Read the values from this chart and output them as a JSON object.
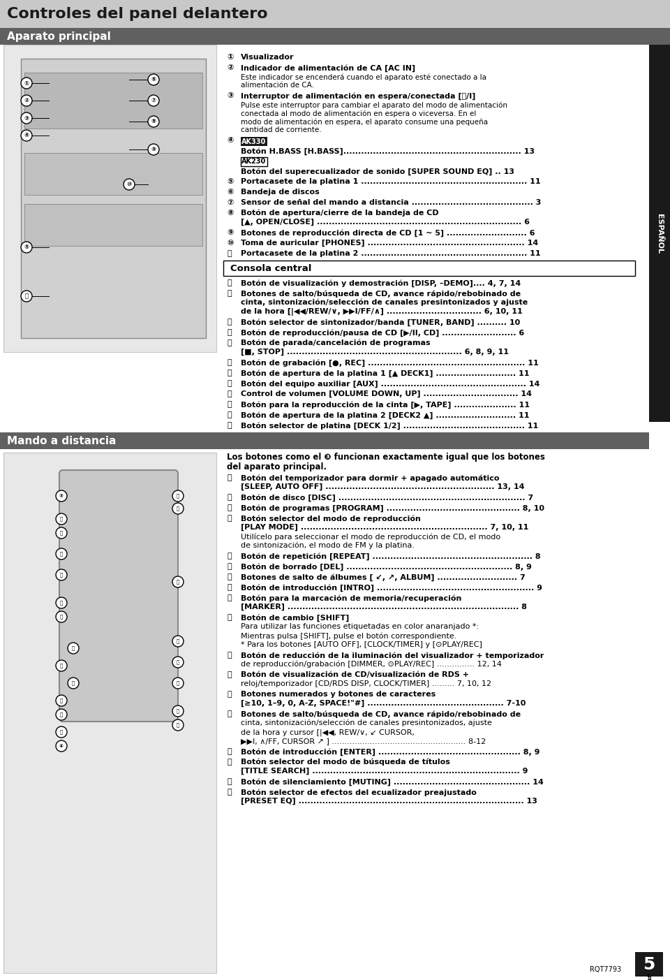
{
  "page_bg": "#ffffff",
  "header_bg": "#c8c8c8",
  "section_header_bg": "#606060",
  "section_header_fg": "#ffffff",
  "box_border": "#000000",
  "title_text": "Controles del panel delantero",
  "section1_title": "Aparato principal",
  "section2_title": "Mando a distancia",
  "consola_title": "Consola central",
  "side_label": "ESPAÑOL",
  "page_num": "5",
  "model_num": "RQT7793",
  "right_col_items": [
    {
      "num": "①",
      "bold": "Visualizador",
      "rest": ""
    },
    {
      "num": "②",
      "bold": "Indicador de alimentación de CA [AC IN]",
      "rest": "Este indicador se encenderá cuando el aparato esté conectado a la\nalimentación de CA."
    },
    {
      "num": "③",
      "bold": "Interruptor de alimentación en espera/conectada [⏻/I]",
      "rest": "Pulse este interruptor para cambiar el aparato del modo de alimentación\nconectada al modo de alimentación en espera o viceversa. En el\nmodo de alimentación en espera, el aparato consume una pequeña\ncantidad de corriente."
    },
    {
      "num": "④",
      "bold": "AK330",
      "boxed": true,
      "rest": "Botón H.BASS [H.BASS]............................................................ 13\nAK230\nBotón del superecualizador de sonido [SUPER SOUND EQ] .. 13"
    },
    {
      "num": "⑤",
      "bold": "Portacasete de la platina 1 ........................................................ 11",
      "rest": ""
    },
    {
      "num": "⑥",
      "bold": "Bandeja de discos",
      "rest": ""
    },
    {
      "num": "⑦",
      "bold": "Sensor de señal del mando a distancia ......................................... 3",
      "rest": ""
    },
    {
      "num": "⑧",
      "bold": "Botón de apertura/cierre de la bandeja de CD",
      "rest": "[▲, OPEN/CLOSE] ..................................................................... 6"
    },
    {
      "num": "⑨",
      "bold": "Botones de reproducción directa de CD [1 ~ 5] ........................... 6",
      "rest": ""
    },
    {
      "num": "⑩",
      "bold": "Toma de auricular [PHONES] ..................................................... 14",
      "rest": ""
    },
    {
      "num": "⑪",
      "bold": "Portacasete de la platina 2 ........................................................ 11",
      "rest": ""
    }
  ],
  "consola_items": [
    {
      "num": "⑫",
      "bold": "Botón de visualización y demostración [DISP, –DEMO].... 4, 7, 14",
      "rest": ""
    },
    {
      "num": "⑬",
      "bold": "Botones de salto/búsqueda de CD, avance rápido/rebobinado de",
      "rest": "cinta, sintonización/selección de canales presintonizados y ajuste\nde la hora [|◀◀/REW/∨, ▶▶I/FF/∧] ................................ 6, 10, 11"
    },
    {
      "num": "⑭",
      "bold": "Botón selector de sintonizador/banda [TUNER, BAND] .......... 10",
      "rest": ""
    },
    {
      "num": "⑮",
      "bold": "Botón de reproducción/pausa de CD [▶/II, CD] ......................... 6",
      "rest": ""
    },
    {
      "num": "⑯",
      "bold": "Botón de parada/cancelación de programas",
      "rest": "[■, STOP] ........................................................... 6, 8, 9, 11"
    },
    {
      "num": "⑰",
      "bold": "Botón de grabación [●, REC] ..................................................... 11",
      "rest": ""
    },
    {
      "num": "⑱",
      "bold": "Botón de apertura de la platina 1 [▲ DECK1] ........................... 11",
      "rest": ""
    },
    {
      "num": "⑲",
      "bold": "Botón del equipo auxiliar [AUX] ................................................. 14",
      "rest": ""
    },
    {
      "num": "⑳",
      "bold": "Control de volumen [VOLUME DOWN, UP] ................................ 14",
      "rest": ""
    },
    {
      "num": "㉑",
      "bold": "Botón para la reproducción de la cinta [▶, TAPE] ..................... 11",
      "rest": ""
    },
    {
      "num": "㉒",
      "bold": "Botón de apertura de la platina 2 [DECK2 ▲] ........................... 11",
      "rest": ""
    },
    {
      "num": "㉓",
      "bold": "Botón selector de platina [DECK 1/2] ......................................... 11",
      "rest": ""
    }
  ],
  "mando_intro": "Los botones como el ❸ funcionan exactamente igual que los botones\ndel aparato principal.",
  "mando_items": [
    {
      "num": "㉔",
      "bold": "Botón del temporizador para dormir + apagado automático",
      "rest": "[SLEEP, AUTO OFF] ......................................................... 13, 14"
    },
    {
      "num": "㉕",
      "bold": "Botón de disco [DISC] ............................................................... 7",
      "rest": ""
    },
    {
      "num": "㉖",
      "bold": "Botón de programas [PROGRAM] ............................................. 8, 10",
      "rest": ""
    },
    {
      "num": "㉗",
      "bold": "Botón selector del modo de reproducción",
      "rest": "[PLAY MODE] ............................................................... 7, 10, 11\nUtilícelo para seleccionar el modo de reproducción de CD, el modo\nde sintonización, el modo de FM y la platina."
    },
    {
      "num": "㉘",
      "bold": "Botón de repetición [REPEAT] ...................................................... 8",
      "rest": ""
    },
    {
      "num": "㉙",
      "bold": "Botón de borrado [DEL] ........................................................ 8, 9",
      "rest": ""
    },
    {
      "num": "㉚",
      "bold": "Botones de salto de álbumes [ ↙, ↗, ALBUM] ........................... 7",
      "rest": ""
    },
    {
      "num": "㉛",
      "bold": "Botón de introducción [INTRO] ..................................................... 9",
      "rest": ""
    },
    {
      "num": "㉜",
      "bold": "Botón para la marcación de memoria/recuperación",
      "rest": "[MARKER] .............................................................................. 8"
    },
    {
      "num": "㉝",
      "bold": "Botón de cambio [SHIFT]",
      "rest": "Para utilizar las funciones etiquetadas en color anaranjado *:\nMientras pulsa [SHIFT], pulse el botón correspondiente.\n* Para los botones [AUTO OFF], [CLOCK/TIMER] y [⊙PLAY/REC]"
    },
    {
      "num": "㉞",
      "bold": "Botón de reducción de la iluminación del visualizador + temporizador",
      "rest": "de reproducción/grabación [DIMMER, ⊙PLAY/REC] ............... 12, 14"
    },
    {
      "num": "㉟",
      "bold": "Botón de visualización de CD/visualización de RDS +",
      "rest": "reloj/temporizador [CD/RDS DISP, CLOCK/TIMER] ......... 7, 10, 12"
    },
    {
      "num": "㊱",
      "bold": "Botones numerados y botones de caracteres",
      "rest": "[≥10, 1–9, 0, A-Z, SPACE!\"#] .............................................. 7-10"
    },
    {
      "num": "㊲",
      "bold": "Botones de salto/búsqueda de CD, avance rápido/rebobinado de",
      "rest": "cinta, sintonización/selección de canales presintonizados, ajuste\nde la hora y cursor [|◀◀, REW/∨, ↙ CURSOR,\n▶▶I, ∧/FF, CURSOR ↗ ] ..................................................... 8-12"
    },
    {
      "num": "㊳",
      "bold": "Botón de introducción [ENTER] ................................................ 8, 9",
      "rest": ""
    },
    {
      "num": "㊴",
      "bold": "Botón selector del modo de búsqueda de títulos",
      "rest": "[TITLE SEARCH] ...................................................................... 9"
    },
    {
      "num": "㊵",
      "bold": "Botón de silenciamiento [MUTING] .............................................. 14",
      "rest": ""
    },
    {
      "num": "㊶",
      "bold": "Botón selector de efectos del ecualizador preajustado",
      "rest": "[PRESET EQ] ............................................................................ 13"
    }
  ]
}
